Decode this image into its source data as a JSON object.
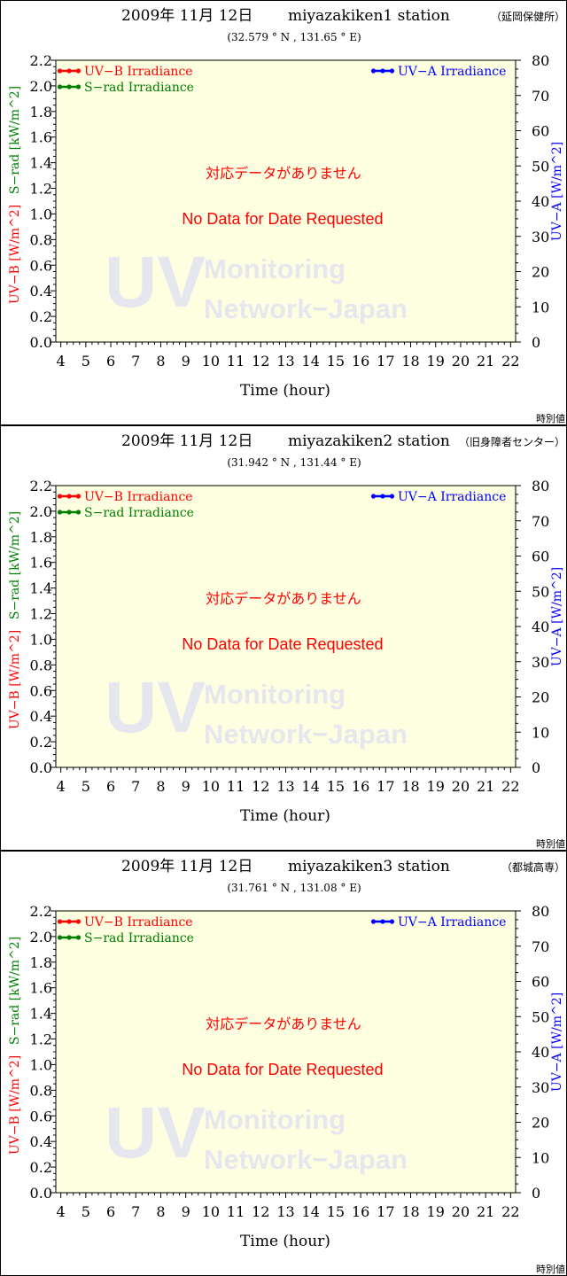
{
  "colors": {
    "uvb": "#ff0000",
    "srad": "#008000",
    "uva": "#0000ff",
    "plot_bg": "#fefee0",
    "watermark": "#e6e6ee",
    "message": "#ff0000"
  },
  "chart_data": [
    {
      "type": "line",
      "date": "2009年 11月 12日",
      "station": "miyazakiken1 station",
      "station_jp": "（延岡保健所）",
      "coords": "(32.579 ° N , 131.65 ° E)",
      "xlabel": "Time (hour)",
      "xticks": [
        4,
        5,
        6,
        7,
        8,
        9,
        10,
        11,
        12,
        13,
        14,
        15,
        16,
        17,
        18,
        19,
        20,
        21,
        22
      ],
      "xlim": [
        3.8,
        22.2
      ],
      "ylabel_left_uvb": "UV−B [W/m^2]",
      "ylabel_left_srad": "S−rad [kW/m^2]",
      "ylim_left": [
        0,
        2.2
      ],
      "yticks_left": [
        "0.0",
        "0.2",
        "0.4",
        "0.6",
        "0.8",
        "1.0",
        "1.2",
        "1.4",
        "1.6",
        "1.8",
        "2.0",
        "2.2"
      ],
      "ylabel_right": "UV−A [W/m^2]",
      "ylim_right": [
        0,
        80
      ],
      "yticks_right": [
        "0",
        "10",
        "20",
        "30",
        "40",
        "50",
        "60",
        "70",
        "80"
      ],
      "legend": {
        "uvb": "UV−B Irradiance",
        "srad": "S−rad Irradiance",
        "uva": "UV−A Irradiance"
      },
      "series": [],
      "message_jp": "対応データがありません",
      "message_en": "No Data for Date Requested",
      "watermark": {
        "big": "UV",
        "line1": "Monitoring",
        "line2": "Network−Japan"
      },
      "footer": "時別値"
    },
    {
      "type": "line",
      "date": "2009年 11月 12日",
      "station": "miyazakiken2 station",
      "station_jp": "（旧身障者センター）",
      "coords": "(31.942 ° N , 131.44 ° E)",
      "xlabel": "Time (hour)",
      "xticks": [
        4,
        5,
        6,
        7,
        8,
        9,
        10,
        11,
        12,
        13,
        14,
        15,
        16,
        17,
        18,
        19,
        20,
        21,
        22
      ],
      "xlim": [
        3.8,
        22.2
      ],
      "ylabel_left_uvb": "UV−B [W/m^2]",
      "ylabel_left_srad": "S−rad [kW/m^2]",
      "ylim_left": [
        0,
        2.2
      ],
      "yticks_left": [
        "0.0",
        "0.2",
        "0.4",
        "0.6",
        "0.8",
        "1.0",
        "1.2",
        "1.4",
        "1.6",
        "1.8",
        "2.0",
        "2.2"
      ],
      "ylabel_right": "UV−A [W/m^2]",
      "ylim_right": [
        0,
        80
      ],
      "yticks_right": [
        "0",
        "10",
        "20",
        "30",
        "40",
        "50",
        "60",
        "70",
        "80"
      ],
      "legend": {
        "uvb": "UV−B Irradiance",
        "srad": "S−rad Irradiance",
        "uva": "UV−A Irradiance"
      },
      "series": [],
      "message_jp": "対応データがありません",
      "message_en": "No Data for Date Requested",
      "watermark": {
        "big": "UV",
        "line1": "Monitoring",
        "line2": "Network−Japan"
      },
      "footer": "時別値"
    },
    {
      "type": "line",
      "date": "2009年 11月 12日",
      "station": "miyazakiken3 station",
      "station_jp": "（都城高専）",
      "coords": "(31.761 ° N , 131.08 ° E)",
      "xlabel": "Time (hour)",
      "xticks": [
        4,
        5,
        6,
        7,
        8,
        9,
        10,
        11,
        12,
        13,
        14,
        15,
        16,
        17,
        18,
        19,
        20,
        21,
        22
      ],
      "xlim": [
        3.8,
        22.2
      ],
      "ylabel_left_uvb": "UV−B [W/m^2]",
      "ylabel_left_srad": "S−rad [kW/m^2]",
      "ylim_left": [
        0,
        2.2
      ],
      "yticks_left": [
        "0.0",
        "0.2",
        "0.4",
        "0.6",
        "0.8",
        "1.0",
        "1.2",
        "1.4",
        "1.6",
        "1.8",
        "2.0",
        "2.2"
      ],
      "ylabel_right": "UV−A [W/m^2]",
      "ylim_right": [
        0,
        80
      ],
      "yticks_right": [
        "0",
        "10",
        "20",
        "30",
        "40",
        "50",
        "60",
        "70",
        "80"
      ],
      "legend": {
        "uvb": "UV−B Irradiance",
        "srad": "S−rad Irradiance",
        "uva": "UV−A Irradiance"
      },
      "series": [],
      "message_jp": "対応データがありません",
      "message_en": "No Data for Date Requested",
      "watermark": {
        "big": "UV",
        "line1": "Monitoring",
        "line2": "Network−Japan"
      },
      "footer": "時別値"
    }
  ]
}
